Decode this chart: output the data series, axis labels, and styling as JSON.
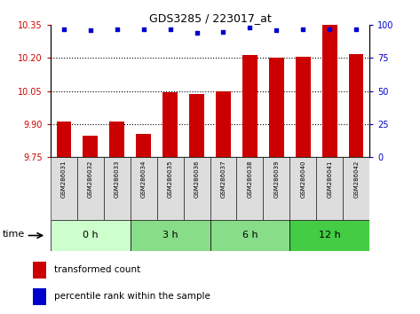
{
  "title": "GDS3285 / 223017_at",
  "samples": [
    "GSM286031",
    "GSM286032",
    "GSM286033",
    "GSM286034",
    "GSM286035",
    "GSM286036",
    "GSM286037",
    "GSM286038",
    "GSM286039",
    "GSM286040",
    "GSM286041",
    "GSM286042"
  ],
  "bar_values": [
    9.91,
    9.845,
    9.91,
    9.855,
    10.045,
    10.035,
    10.05,
    10.215,
    10.2,
    10.205,
    10.35,
    10.22
  ],
  "percentile_values": [
    97,
    96,
    97,
    97,
    97,
    94,
    95,
    98,
    96,
    97,
    97,
    97
  ],
  "ylim_left": [
    9.75,
    10.35
  ],
  "ylim_right": [
    0,
    100
  ],
  "yticks_left": [
    9.75,
    9.9,
    10.05,
    10.2,
    10.35
  ],
  "yticks_right": [
    0,
    25,
    50,
    75,
    100
  ],
  "bar_color": "#cc0000",
  "dot_color": "#0000cc",
  "bar_base": 9.75,
  "groups": [
    {
      "label": "0 h",
      "start": 0,
      "end": 3,
      "color": "#ccffcc"
    },
    {
      "label": "3 h",
      "start": 3,
      "end": 6,
      "color": "#88dd88"
    },
    {
      "label": "6 h",
      "start": 6,
      "end": 9,
      "color": "#88dd88"
    },
    {
      "label": "12 h",
      "start": 9,
      "end": 12,
      "color": "#44cc44"
    }
  ],
  "time_label": "time",
  "legend_bar": "transformed count",
  "legend_dot": "percentile rank within the sample",
  "grid_color": "#000000",
  "background_color": "#ffffff",
  "tick_label_color_left": "#cc0000",
  "tick_label_color_right": "#0000cc"
}
